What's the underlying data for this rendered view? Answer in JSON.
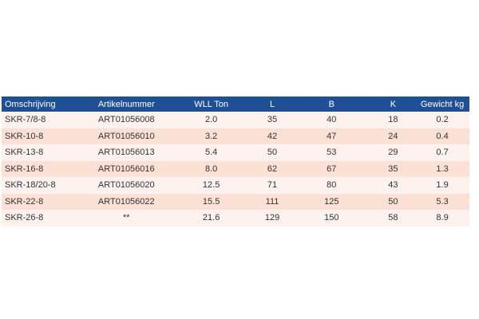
{
  "table": {
    "headers": [
      "Omschrijving",
      "Artikelnummer",
      "WLL Ton",
      "L",
      "B",
      "K",
      "Gewicht kg"
    ],
    "rows": [
      [
        "SKR-7/8-8",
        "ART01056008",
        "2.0",
        "35",
        "40",
        "18",
        "0.2"
      ],
      [
        "SKR-10-8",
        "ART01056010",
        "3.2",
        "42",
        "47",
        "24",
        "0.4"
      ],
      [
        "SKR-13-8",
        "ART01056013",
        "5.4",
        "50",
        "53",
        "29",
        "0.7"
      ],
      [
        "SKR-16-8",
        "ART01056016",
        "8.0",
        "62",
        "67",
        "35",
        "1.3"
      ],
      [
        "SKR-18/20-8",
        "ART01056020",
        "12.5",
        "71",
        "80",
        "43",
        "1.9"
      ],
      [
        "SKR-22-8",
        "ART01056022",
        "15.5",
        "111",
        "125",
        "50",
        "5.3"
      ],
      [
        "SKR-26-8",
        "**",
        "21.6",
        "129",
        "150",
        "58",
        "8.9"
      ]
    ]
  },
  "colors": {
    "header_bg": "#1f4f95",
    "header_text": "#ffffff",
    "row_light": "#fdf2ed",
    "row_dark": "#fae0d5"
  }
}
